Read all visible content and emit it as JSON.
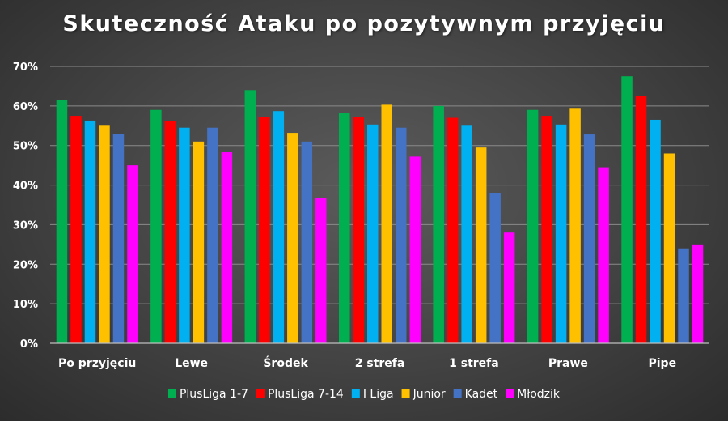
{
  "chart_data": {
    "type": "bar",
    "title": "Skuteczność Ataku po pozytywnym przyjęciu",
    "categories": [
      "Po przyjęciu",
      "Lewe",
      "Środek",
      "2 strefa",
      "1 strefa",
      "Prawe",
      "Pipe"
    ],
    "series": [
      {
        "name": "PlusLiga 1-7",
        "color": "#00b050",
        "values": [
          61.5,
          59,
          64,
          58.3,
          60,
          59,
          67.5
        ]
      },
      {
        "name": "PlusLiga 7-14",
        "color": "#ff0000",
        "values": [
          57.5,
          56.2,
          57.3,
          57.3,
          57,
          57.5,
          62.5
        ]
      },
      {
        "name": "I Liga",
        "color": "#00b0f0",
        "values": [
          56.3,
          54.5,
          58.7,
          55.3,
          55,
          55.3,
          56.5
        ]
      },
      {
        "name": "Junior",
        "color": "#ffc000",
        "values": [
          55,
          51,
          53.2,
          60.3,
          49.5,
          59.3,
          48
        ]
      },
      {
        "name": "Kadet",
        "color": "#4472c4",
        "values": [
          53,
          54.5,
          51,
          54.5,
          38,
          52.8,
          24
        ]
      },
      {
        "name": "Młodzik",
        "color": "#ff00ff",
        "values": [
          45,
          48.3,
          36.8,
          47.2,
          28,
          44.5,
          25
        ]
      }
    ],
    "yticks": [
      "0%",
      "10%",
      "20%",
      "30%",
      "40%",
      "50%",
      "60%",
      "70%"
    ],
    "ylim": [
      0,
      70
    ],
    "grid": true,
    "legend": "bottom"
  }
}
